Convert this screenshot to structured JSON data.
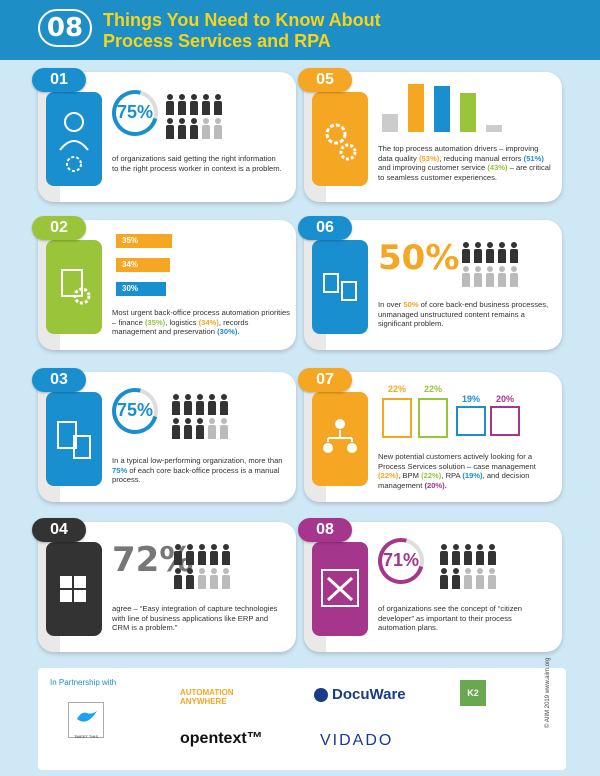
{
  "header": {
    "number": "08",
    "title_line1": "Things You Need to Know About",
    "title_line2": "Process Services and RPA"
  },
  "cards": [
    {
      "num": "01",
      "color": "#1a8fd0",
      "stat": "75%",
      "text": "of organizations said getting the right information to the right process worker in context is a problem."
    },
    {
      "num": "05",
      "color": "#f5a623",
      "text": "The top process automation drivers – improving data quality",
      "v1": "(53%)",
      "t2": ", reducing manual errors",
      "v2": "(51%)",
      "t3": "and improving customer service",
      "v3": "(43%)",
      "t4": "– are critical to seamless customer experiences."
    },
    {
      "num": "02",
      "color": "#9ac43a",
      "a1": "35%",
      "a2": "34%",
      "a3": "30%",
      "text": "Most urgent back-office process automation priorities – finance",
      "v1": "(35%)",
      "t2": ", logistics",
      "v2": "(34%)",
      "t3": ",",
      "t3b": "records management and preservation",
      "v3": "(30%)."
    },
    {
      "num": "06",
      "color": "#1a8fd0",
      "stat": "50%",
      "text": "In over",
      "v1": "50%",
      "t2": "of core back-end business processes, unmanaged unstructured content remains a significant problem."
    },
    {
      "num": "03",
      "color": "#1a8fd0",
      "stat": "75%",
      "text": "In a typical low-performing organization, more than",
      "v1": "75%",
      "t2": "of each core back-office process is a manual process."
    },
    {
      "num": "07",
      "color": "#f5a623",
      "p1": "22%",
      "p2": "22%",
      "p3": "19%",
      "p4": "20%",
      "text": "New potential customers actively looking for a Process Services solution – case management",
      "v1": "(22%)",
      "t2": ", BPM",
      "v2": "(22%)",
      "t3": ", RPA",
      "v3": "(19%)",
      "t4": ", and decision management",
      "v4": "(20%)."
    },
    {
      "num": "04",
      "color": "#333333",
      "stat": "72%",
      "text": "agree – “Easy integration of capture technologies with line of business applications like ERP and CRM is a problem.”"
    },
    {
      "num": "08",
      "color": "#a5368c",
      "stat": "71%",
      "text": "of organizations see the concept of “citizen developer” as important to their process automation plans."
    }
  ],
  "chart_data": {
    "type": "bar",
    "values": [
      53,
      51,
      43
    ],
    "labels": [
      "data quality",
      "manual errors",
      "customer service"
    ]
  },
  "footer": {
    "partnership": "In Partnership with",
    "tweet": "TWEET THIS",
    "logos": [
      "AUTOMATION ANYWHERE",
      "DocuWare",
      "K2",
      "opentext™",
      "VIDADO"
    ],
    "aiim": "© AIIM 2019 www.aiim.org"
  }
}
